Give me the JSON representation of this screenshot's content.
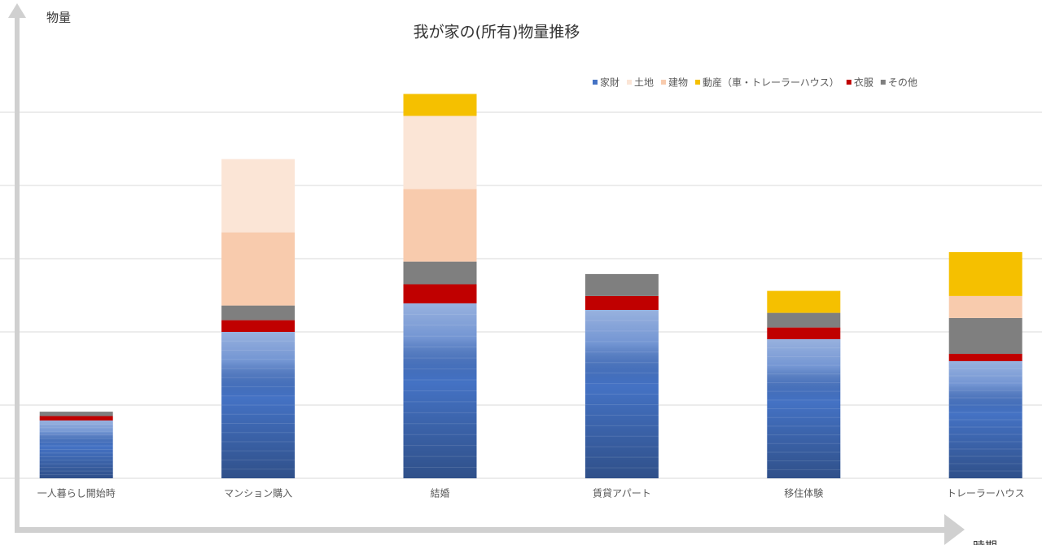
{
  "chart_data": {
    "type": "bar",
    "stacked": true,
    "title": "我が家の(所有)物量推移",
    "y_label": "物量",
    "x_label": "時期",
    "categories": [
      "一人暮らし開始時",
      "マンション購入",
      "結婚",
      "賃貸アパート",
      "移住体験",
      "トレーラーハウス"
    ],
    "series": [
      {
        "name": "家財",
        "color": "#4472c4",
        "values": [
          0.79,
          2.0,
          2.39,
          2.3,
          1.9,
          1.6
        ]
      },
      {
        "name": "土地",
        "color": "#fbe5d6",
        "values": [
          0,
          1.0,
          1.0,
          0,
          0,
          0
        ]
      },
      {
        "name": "建物",
        "color": "#f8cbad",
        "values": [
          0,
          1.0,
          0.99,
          0,
          0,
          0.3
        ]
      },
      {
        "name": "動産（車・トレーラーハウス）",
        "color": "#f5c000",
        "values": [
          0,
          0,
          0.3,
          0,
          0.3,
          0.6
        ]
      },
      {
        "name": "衣服",
        "color": "#c00000",
        "values": [
          0.06,
          0.16,
          0.26,
          0.19,
          0.16,
          0.1
        ]
      },
      {
        "name": "その他",
        "color": "#7f7f7f",
        "values": [
          0.06,
          0.2,
          0.31,
          0.3,
          0.2,
          0.49
        ]
      }
    ],
    "ylim": [
      0,
      5.5
    ],
    "gridlines": [
      1,
      2,
      3,
      4,
      5
    ],
    "grid": true,
    "legend": "top-right"
  }
}
